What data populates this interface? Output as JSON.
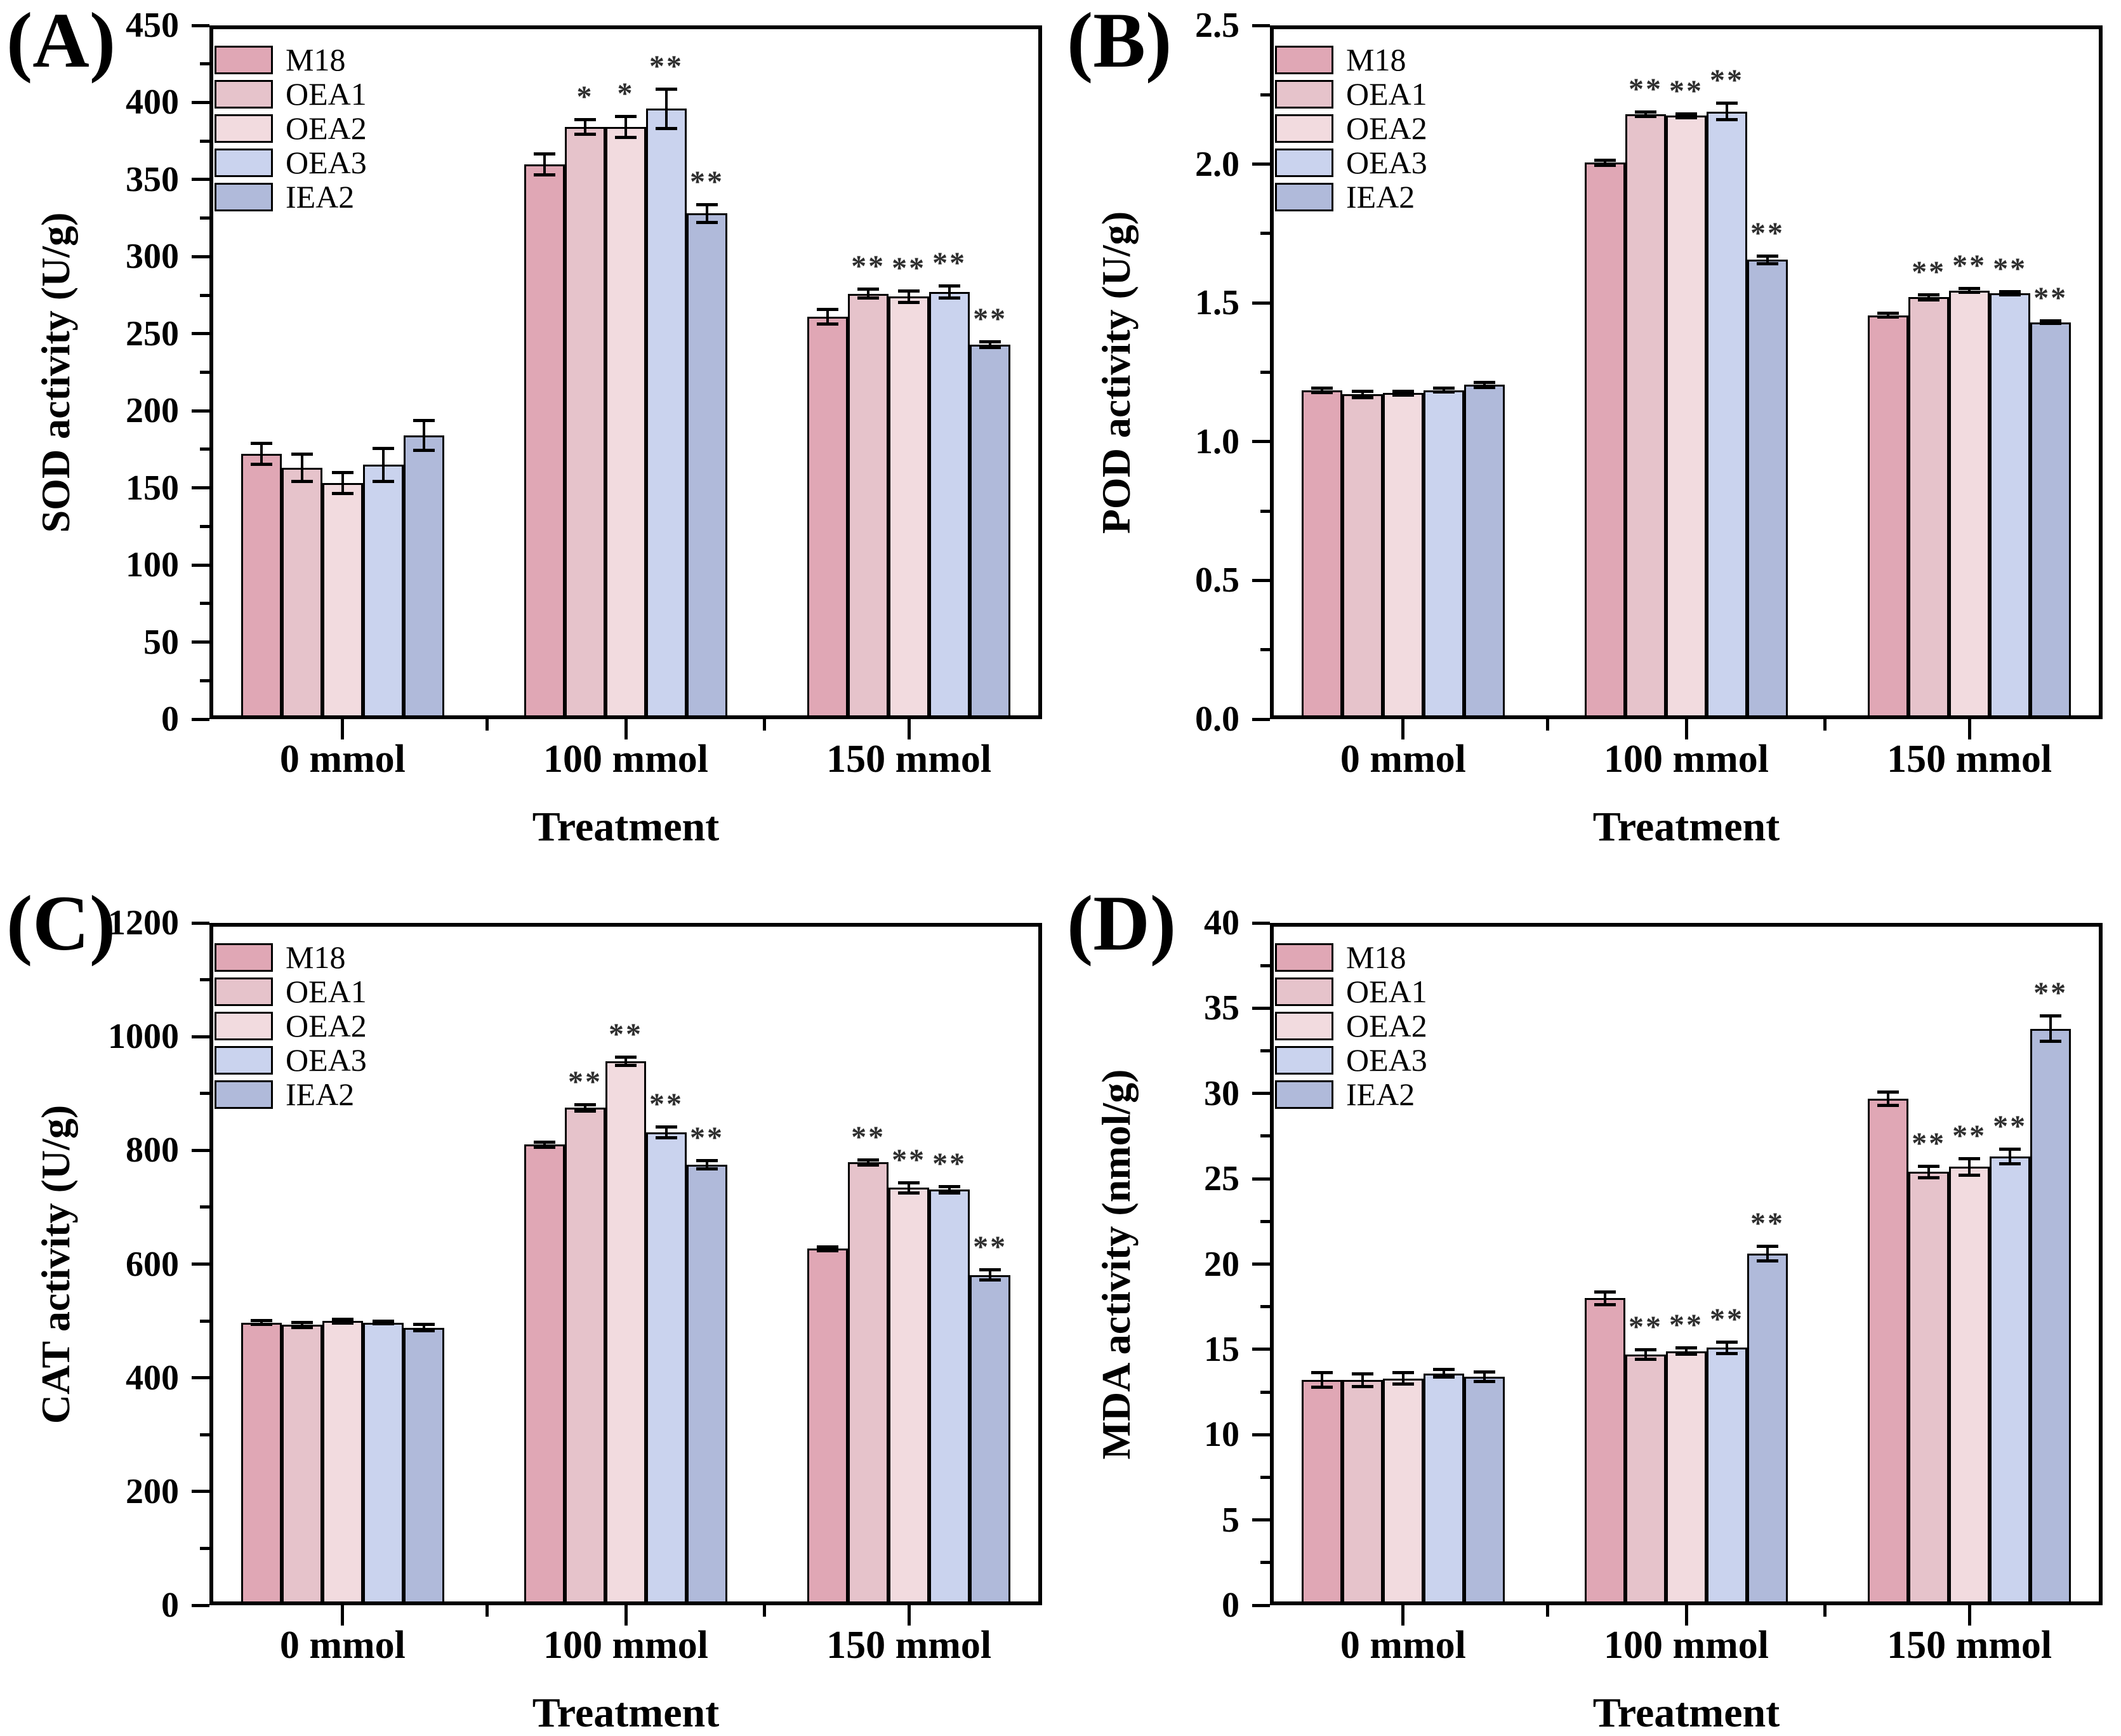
{
  "figure": {
    "background": "#ffffff",
    "star_color": "#2e2e2e",
    "bar_border_color": "#000000",
    "axis_color": "#000000"
  },
  "chart_data": [
    {
      "panel": "(A)",
      "type": "bar",
      "ylabel": "SOD activity (U/g)",
      "xlabel": "Treatment",
      "categories": [
        "0 mmol",
        "100 mmol",
        "150 mmol"
      ],
      "ylim": [
        0,
        450
      ],
      "ytick_labels": [
        "0",
        "50",
        "100",
        "150",
        "200",
        "250",
        "300",
        "350",
        "400",
        "450"
      ],
      "grid": false,
      "legend_position": "top-left",
      "series": [
        {
          "name": "M18",
          "color": "#e0a7b5",
          "values": [
            172,
            360,
            261
          ],
          "errors": [
            7,
            7,
            5
          ],
          "significance": [
            "",
            "",
            ""
          ]
        },
        {
          "name": "OEA1",
          "color": "#e6c3cb",
          "values": [
            163,
            384,
            276
          ],
          "errors": [
            9,
            5,
            3
          ],
          "significance": [
            "",
            "*",
            "**"
          ]
        },
        {
          "name": "OEA2",
          "color": "#f2dbdf",
          "values": [
            153,
            384,
            274
          ],
          "errors": [
            7,
            7,
            4
          ],
          "significance": [
            "",
            "*",
            "**"
          ]
        },
        {
          "name": "OEA3",
          "color": "#cad3ee",
          "values": [
            165,
            396,
            277
          ],
          "errors": [
            11,
            13,
            4
          ],
          "significance": [
            "",
            "**",
            "**"
          ]
        },
        {
          "name": "IEA2",
          "color": "#b0bada",
          "values": [
            184,
            328,
            243
          ],
          "errors": [
            10,
            6,
            2
          ],
          "significance": [
            "",
            "**",
            "**"
          ]
        }
      ]
    },
    {
      "panel": "(B)",
      "type": "bar",
      "ylabel": "POD activity (U/g)",
      "xlabel": "Treatment",
      "categories": [
        "0 mmol",
        "100 mmol",
        "150 mmol"
      ],
      "ylim": [
        0,
        2.5
      ],
      "ytick_labels": [
        "0.0",
        "0.5",
        "1.0",
        "1.5",
        "2.0",
        "2.5"
      ],
      "grid": false,
      "legend_position": "top-left",
      "series": [
        {
          "name": "M18",
          "color": "#e0a7b5",
          "values": [
            1.185,
            2.005,
            1.455
          ],
          "errors": [
            0.01,
            0.01,
            0.008
          ],
          "significance": [
            "",
            "",
            ""
          ]
        },
        {
          "name": "OEA1",
          "color": "#e6c3cb",
          "values": [
            1.17,
            2.18,
            1.52
          ],
          "errors": [
            0.012,
            0.01,
            0.01
          ],
          "significance": [
            "",
            "**",
            "**"
          ]
        },
        {
          "name": "OEA2",
          "color": "#f2dbdf",
          "values": [
            1.175,
            2.175,
            1.545
          ],
          "errors": [
            0.008,
            0.008,
            0.008
          ],
          "significance": [
            "",
            "**",
            "**"
          ]
        },
        {
          "name": "OEA3",
          "color": "#cad3ee",
          "values": [
            1.185,
            2.19,
            1.535
          ],
          "errors": [
            0.008,
            0.03,
            0.006
          ],
          "significance": [
            "",
            "**",
            "**"
          ]
        },
        {
          "name": "IEA2",
          "color": "#b0bada",
          "values": [
            1.205,
            1.655,
            1.43
          ],
          "errors": [
            0.01,
            0.015,
            0.006
          ],
          "significance": [
            "",
            "**",
            "**"
          ]
        }
      ]
    },
    {
      "panel": "(C)",
      "type": "bar",
      "ylabel": "CAT activity (U/g)",
      "xlabel": "Treatment",
      "categories": [
        "0 mmol",
        "100 mmol",
        "150 mmol"
      ],
      "ylim": [
        0,
        1200
      ],
      "ytick_labels": [
        "0",
        "200",
        "400",
        "600",
        "800",
        "1000",
        "1200"
      ],
      "grid": false,
      "legend_position": "top-left",
      "series": [
        {
          "name": "M18",
          "color": "#e0a7b5",
          "values": [
            497,
            810,
            627
          ],
          "errors": [
            4,
            5,
            4
          ],
          "significance": [
            "",
            "",
            ""
          ]
        },
        {
          "name": "OEA1",
          "color": "#e6c3cb",
          "values": [
            493,
            875,
            779
          ],
          "errors": [
            5,
            6,
            5
          ],
          "significance": [
            "",
            "**",
            "**"
          ]
        },
        {
          "name": "OEA2",
          "color": "#f2dbdf",
          "values": [
            500,
            957,
            734
          ],
          "errors": [
            4,
            8,
            9
          ],
          "significance": [
            "",
            "**",
            "**"
          ]
        },
        {
          "name": "OEA3",
          "color": "#cad3ee",
          "values": [
            497,
            832,
            731
          ],
          "errors": [
            3,
            10,
            6
          ],
          "significance": [
            "",
            "**",
            "**"
          ]
        },
        {
          "name": "IEA2",
          "color": "#b0bada",
          "values": [
            488,
            775,
            581
          ],
          "errors": [
            6,
            8,
            9
          ],
          "significance": [
            "",
            "**",
            "**"
          ]
        }
      ]
    },
    {
      "panel": "(D)",
      "type": "bar",
      "ylabel": "MDA activity (nmol/g)",
      "xlabel": "Treatment",
      "categories": [
        "0 mmol",
        "100 mmol",
        "150 mmol"
      ],
      "ylim": [
        0,
        40
      ],
      "ytick_labels": [
        "0",
        "5",
        "10",
        "15",
        "20",
        "25",
        "30",
        "35",
        "40"
      ],
      "grid": false,
      "legend_position": "top-left",
      "series": [
        {
          "name": "M18",
          "color": "#e0a7b5",
          "values": [
            13.2,
            18.0,
            29.7
          ],
          "errors": [
            0.45,
            0.4,
            0.4
          ],
          "significance": [
            "",
            "",
            ""
          ]
        },
        {
          "name": "OEA1",
          "color": "#e6c3cb",
          "values": [
            13.2,
            14.7,
            25.4
          ],
          "errors": [
            0.4,
            0.3,
            0.35
          ],
          "significance": [
            "",
            "**",
            "**"
          ]
        },
        {
          "name": "OEA2",
          "color": "#f2dbdf",
          "values": [
            13.3,
            14.9,
            25.7
          ],
          "errors": [
            0.35,
            0.2,
            0.5
          ],
          "significance": [
            "",
            "**",
            "**"
          ]
        },
        {
          "name": "OEA3",
          "color": "#cad3ee",
          "values": [
            13.6,
            15.1,
            26.3
          ],
          "errors": [
            0.25,
            0.35,
            0.45
          ],
          "significance": [
            "",
            "**",
            "**"
          ]
        },
        {
          "name": "IEA2",
          "color": "#b0bada",
          "values": [
            13.4,
            20.6,
            33.8
          ],
          "errors": [
            0.3,
            0.45,
            0.75
          ],
          "significance": [
            "",
            "**",
            "**"
          ]
        }
      ]
    }
  ]
}
